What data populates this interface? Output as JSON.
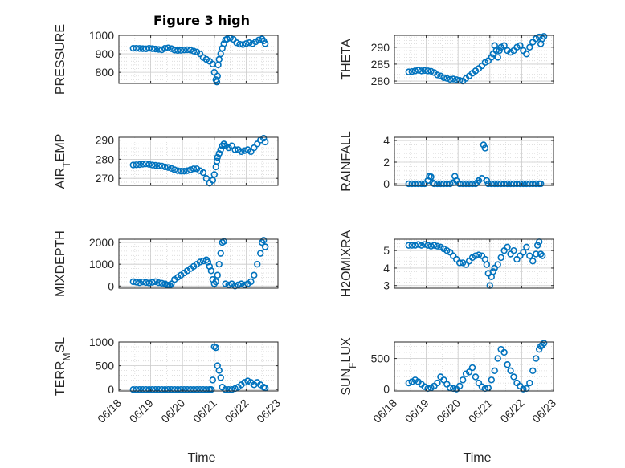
{
  "figure": {
    "title": "Figure 3 high",
    "xlabel": "Time",
    "xticks": [
      "06/18",
      "06/19",
      "06/20",
      "06/21",
      "06/22",
      "06/23"
    ],
    "marker_color": "#0072BD"
  },
  "chart_data": [
    {
      "type": "scatter",
      "ylabel": "PRESSURE",
      "xlim": [
        0,
        5
      ],
      "ylim": [
        740,
        1000
      ],
      "yticks": [
        800,
        900,
        1000
      ],
      "series": [
        {
          "x": [
            0.45,
            0.55,
            0.65,
            0.75,
            0.85,
            0.95,
            1.05,
            1.15,
            1.25,
            1.35,
            1.45,
            1.55,
            1.65,
            1.75,
            1.85,
            1.95,
            2.05,
            2.15,
            2.25,
            2.35,
            2.45,
            2.55,
            2.65,
            2.75,
            2.85,
            2.95,
            3.0,
            3.05,
            3.08,
            3.1,
            3.12,
            3.15,
            3.2,
            3.25,
            3.3,
            3.35,
            3.4,
            3.5,
            3.6,
            3.7,
            3.8,
            3.9,
            4.0,
            4.1,
            4.2,
            4.3,
            4.4,
            4.5,
            4.55,
            4.6
          ],
          "y": [
            930,
            930,
            929,
            928,
            927,
            930,
            928,
            926,
            924,
            922,
            930,
            932,
            928,
            920,
            918,
            919,
            921,
            922,
            920,
            915,
            910,
            900,
            880,
            870,
            860,
            845,
            800,
            760,
            748,
            780,
            840,
            870,
            900,
            930,
            955,
            975,
            980,
            985,
            978,
            960,
            952,
            950,
            955,
            960,
            955,
            965,
            975,
            980,
            970,
            955
          ]
        }
      ]
    },
    {
      "type": "scatter",
      "ylabel": "THETA",
      "xlim": [
        0,
        5
      ],
      "ylim": [
        279.3,
        293.5
      ],
      "yticks": [
        280,
        285,
        290
      ],
      "series": [
        {
          "x": [
            0.45,
            0.55,
            0.65,
            0.75,
            0.85,
            0.95,
            1.05,
            1.15,
            1.25,
            1.35,
            1.45,
            1.55,
            1.65,
            1.75,
            1.85,
            1.95,
            2.05,
            2.15,
            2.25,
            2.35,
            2.45,
            2.55,
            2.65,
            2.75,
            2.85,
            2.95,
            3.05,
            3.1,
            3.15,
            3.2,
            3.25,
            3.3,
            3.35,
            3.45,
            3.55,
            3.65,
            3.75,
            3.85,
            3.95,
            4.05,
            4.15,
            4.25,
            4.35,
            4.45,
            4.55,
            4.6,
            4.65,
            4.7
          ],
          "y": [
            282.7,
            282.8,
            283.0,
            283.2,
            283.0,
            283.1,
            283.0,
            282.9,
            282.5,
            281.8,
            281.5,
            281.0,
            280.8,
            280.5,
            280.6,
            280.4,
            280.2,
            280.0,
            280.8,
            281.5,
            282.3,
            283.0,
            283.7,
            284.5,
            285.5,
            286.0,
            287.0,
            288.0,
            290.5,
            289.0,
            287.0,
            289.0,
            290.0,
            290.5,
            289.0,
            288.5,
            289.0,
            290.0,
            290.5,
            289.0,
            288.0,
            290.0,
            291.5,
            292.5,
            293.0,
            291.0,
            292.5,
            293.2
          ]
        }
      ]
    },
    {
      "type": "scatter",
      "ylabel": "AIR_TEMP",
      "xlim": [
        0,
        5
      ],
      "ylim": [
        266.3,
        291.5
      ],
      "yticks": [
        270,
        280,
        290
      ],
      "series": [
        {
          "x": [
            0.45,
            0.55,
            0.65,
            0.75,
            0.85,
            0.95,
            1.05,
            1.15,
            1.25,
            1.35,
            1.45,
            1.55,
            1.65,
            1.75,
            1.85,
            1.95,
            2.05,
            2.15,
            2.25,
            2.35,
            2.45,
            2.55,
            2.65,
            2.75,
            2.85,
            2.95,
            3.0,
            3.05,
            3.08,
            3.1,
            3.15,
            3.2,
            3.25,
            3.3,
            3.35,
            3.45,
            3.55,
            3.65,
            3.75,
            3.85,
            3.95,
            4.05,
            4.15,
            4.25,
            4.35,
            4.45,
            4.55,
            4.6
          ],
          "y": [
            277.0,
            277.1,
            277.2,
            277.4,
            277.6,
            277.3,
            277.0,
            276.8,
            276.6,
            276.4,
            276.0,
            275.7,
            275.2,
            274.5,
            274.0,
            273.8,
            273.8,
            274.0,
            274.5,
            275.0,
            275.0,
            274.0,
            273.0,
            270.0,
            267.5,
            269.0,
            272.0,
            276.0,
            279.0,
            281.0,
            283.0,
            285.0,
            287.0,
            288.0,
            287.0,
            286.0,
            287.0,
            285.0,
            285.0,
            284.0,
            284.5,
            285.0,
            284.0,
            286.0,
            288.0,
            290.0,
            291.0,
            289.0
          ]
        }
      ]
    },
    {
      "type": "scatter",
      "ylabel": "RAINFALL",
      "xlim": [
        0,
        5
      ],
      "ylim": [
        -0.15,
        4.3
      ],
      "yticks": [
        0,
        2,
        4
      ],
      "series": [
        {
          "x": [
            0.45,
            0.55,
            0.65,
            0.75,
            0.85,
            0.95,
            1.05,
            1.1,
            1.15,
            1.2,
            1.25,
            1.35,
            1.45,
            1.55,
            1.65,
            1.75,
            1.85,
            1.9,
            1.95,
            2.05,
            2.15,
            2.25,
            2.35,
            2.45,
            2.55,
            2.6,
            2.65,
            2.75,
            2.8,
            2.85,
            2.9,
            2.95,
            3.05,
            3.15,
            3.25,
            3.35,
            3.45,
            3.55,
            3.65,
            3.75,
            3.85,
            3.95,
            4.05,
            4.15,
            4.25,
            4.35,
            4.45,
            4.55,
            4.6
          ],
          "y": [
            0,
            0,
            0,
            0,
            0,
            0,
            0.3,
            0.7,
            0.65,
            0.1,
            0,
            0,
            0,
            0,
            0,
            0,
            0.1,
            0.7,
            0.3,
            0,
            0,
            0,
            0,
            0,
            0,
            0.1,
            0.3,
            0.5,
            3.6,
            3.3,
            0.3,
            0,
            0,
            0,
            0,
            0,
            0,
            0,
            0,
            0,
            0,
            0,
            0,
            0,
            0,
            0,
            0,
            0,
            0
          ]
        }
      ]
    },
    {
      "type": "scatter",
      "ylabel": "MIXDEPTH",
      "xlim": [
        0,
        5
      ],
      "ylim": [
        -100,
        2150
      ],
      "yticks": [
        0,
        1000,
        2000
      ],
      "series": [
        {
          "x": [
            0.45,
            0.55,
            0.65,
            0.75,
            0.85,
            0.95,
            1.05,
            1.15,
            1.25,
            1.35,
            1.45,
            1.5,
            1.55,
            1.6,
            1.65,
            1.75,
            1.85,
            1.95,
            2.05,
            2.15,
            2.25,
            2.35,
            2.45,
            2.55,
            2.65,
            2.75,
            2.8,
            2.85,
            2.9,
            2.95,
            3.0,
            3.05,
            3.1,
            3.15,
            3.2,
            3.25,
            3.3,
            3.35,
            3.45,
            3.55,
            3.65,
            3.75,
            3.85,
            3.95,
            4.05,
            4.15,
            4.25,
            4.35,
            4.45,
            4.5,
            4.55,
            4.6
          ],
          "y": [
            200,
            180,
            150,
            190,
            160,
            140,
            170,
            200,
            150,
            130,
            100,
            50,
            40,
            30,
            100,
            300,
            400,
            500,
            600,
            700,
            800,
            900,
            1000,
            1100,
            1150,
            1200,
            1100,
            900,
            700,
            300,
            100,
            200,
            500,
            1000,
            1500,
            2000,
            2050,
            100,
            50,
            100,
            0,
            50,
            100,
            50,
            100,
            200,
            500,
            1000,
            1500,
            2000,
            2100,
            1800
          ]
        }
      ]
    },
    {
      "type": "scatter",
      "ylabel": "H2OMIXRA",
      "xlim": [
        0,
        5
      ],
      "ylim": [
        2.85,
        5.65
      ],
      "yticks": [
        3,
        4,
        5
      ],
      "series": [
        {
          "x": [
            0.45,
            0.55,
            0.65,
            0.75,
            0.85,
            0.95,
            1.05,
            1.15,
            1.25,
            1.35,
            1.45,
            1.55,
            1.65,
            1.75,
            1.85,
            1.95,
            2.05,
            2.15,
            2.25,
            2.35,
            2.45,
            2.55,
            2.65,
            2.75,
            2.85,
            2.9,
            2.95,
            3.0,
            3.05,
            3.1,
            3.15,
            3.25,
            3.35,
            3.45,
            3.55,
            3.65,
            3.75,
            3.85,
            3.95,
            4.05,
            4.15,
            4.25,
            4.35,
            4.45,
            4.5,
            4.55,
            4.6,
            4.65
          ],
          "y": [
            5.3,
            5.3,
            5.3,
            5.35,
            5.3,
            5.35,
            5.3,
            5.25,
            5.3,
            5.25,
            5.2,
            5.1,
            5.0,
            4.9,
            4.7,
            4.5,
            4.3,
            4.3,
            4.2,
            4.4,
            4.6,
            4.7,
            4.75,
            4.7,
            4.5,
            4.2,
            3.7,
            3.0,
            3.5,
            3.8,
            4.0,
            4.2,
            4.6,
            5.0,
            5.2,
            4.8,
            5.0,
            4.5,
            4.7,
            4.9,
            5.2,
            4.7,
            4.4,
            4.8,
            5.3,
            5.5,
            4.8,
            4.7
          ]
        }
      ]
    },
    {
      "type": "scatter",
      "ylabel": "TERR_MSL",
      "xlim": [
        0,
        5
      ],
      "ylim": [
        -30,
        1000
      ],
      "yticks": [
        0,
        500,
        1000
      ],
      "series": [
        {
          "x": [
            0.45,
            0.55,
            0.65,
            0.75,
            0.85,
            0.95,
            1.05,
            1.15,
            1.25,
            1.35,
            1.45,
            1.55,
            1.65,
            1.75,
            1.85,
            1.95,
            2.05,
            2.15,
            2.25,
            2.35,
            2.45,
            2.55,
            2.65,
            2.75,
            2.85,
            2.9,
            2.95,
            3.0,
            3.05,
            3.1,
            3.15,
            3.2,
            3.25,
            3.35,
            3.45,
            3.55,
            3.65,
            3.75,
            3.85,
            3.95,
            4.05,
            4.15,
            4.25,
            4.35,
            4.45,
            4.55,
            4.6
          ],
          "y": [
            0,
            0,
            0,
            0,
            0,
            0,
            0,
            0,
            0,
            0,
            0,
            0,
            0,
            0,
            0,
            0,
            0,
            0,
            0,
            0,
            0,
            0,
            0,
            0,
            0,
            0,
            200,
            900,
            880,
            500,
            400,
            250,
            50,
            0,
            0,
            0,
            20,
            50,
            100,
            150,
            180,
            150,
            100,
            150,
            100,
            50,
            30
          ]
        }
      ]
    },
    {
      "type": "scatter",
      "ylabel": "SUN_FLUX",
      "xlim": [
        0,
        5
      ],
      "ylim": [
        -30,
        770
      ],
      "yticks": [
        0,
        500
      ],
      "series": [
        {
          "x": [
            0.45,
            0.55,
            0.65,
            0.75,
            0.85,
            0.95,
            1.05,
            1.15,
            1.25,
            1.35,
            1.45,
            1.55,
            1.65,
            1.75,
            1.85,
            1.95,
            2.05,
            2.15,
            2.25,
            2.35,
            2.45,
            2.55,
            2.65,
            2.75,
            2.85,
            2.95,
            3.05,
            3.15,
            3.25,
            3.35,
            3.45,
            3.55,
            3.65,
            3.75,
            3.85,
            3.95,
            4.05,
            4.15,
            4.25,
            4.35,
            4.45,
            4.55,
            4.6,
            4.65,
            4.7
          ],
          "y": [
            100,
            120,
            150,
            120,
            80,
            40,
            10,
            20,
            50,
            100,
            200,
            150,
            80,
            20,
            10,
            0,
            50,
            150,
            250,
            280,
            350,
            200,
            100,
            40,
            10,
            20,
            150,
            300,
            500,
            650,
            600,
            400,
            300,
            200,
            100,
            50,
            0,
            10,
            100,
            300,
            500,
            650,
            700,
            720,
            750
          ]
        }
      ]
    }
  ]
}
